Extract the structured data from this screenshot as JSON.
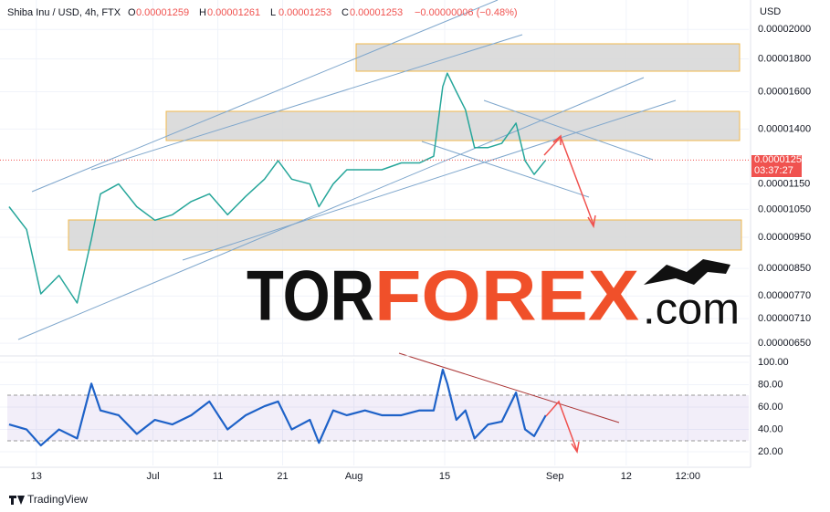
{
  "header": {
    "symbol": "Shiba Inu / USD, 4h, FTX",
    "ohlc": [
      {
        "key": "O",
        "value": "0.00001259"
      },
      {
        "key": "H",
        "value": "0.00001261"
      },
      {
        "key": "L",
        "value": "0.00001253"
      },
      {
        "key": "C",
        "value": "0.00001253"
      }
    ],
    "change": "−0.00000006 (−0.48%)",
    "currency": "USD",
    "countdown": "03:37:27"
  },
  "watermark": {
    "part1": "TOR",
    "part2": "FOREX",
    "part3": ".com"
  },
  "footer": "TradingView",
  "chart_data": [
    {
      "type": "line",
      "log_y": true,
      "grid": true,
      "xlim": [
        7.4,
        122.9
      ],
      "ylim": [
        6.213e-06,
        2.222e-05
      ],
      "yticks": [
        {
          "value": 2e-05,
          "label": "0.00002000"
        },
        {
          "value": 1.8e-05,
          "label": "0.00001800"
        },
        {
          "value": 1.6e-05,
          "label": "0.00001600"
        },
        {
          "value": 1.4e-05,
          "label": "0.00001400"
        },
        {
          "value": 1.15e-05,
          "label": "0.00001150"
        },
        {
          "value": 1.05e-05,
          "label": "0.00001050"
        },
        {
          "value": 9.5e-06,
          "label": "0.00000950"
        },
        {
          "value": 8.5e-06,
          "label": "0.00000850"
        },
        {
          "value": 7.7e-06,
          "label": "0.00000770"
        },
        {
          "value": 7.1e-06,
          "label": "0.00000710"
        },
        {
          "value": 6.5e-06,
          "label": "0.00000650"
        }
      ],
      "last_price": {
        "value": 1.253e-05,
        "label": "0.00001253"
      },
      "x": [
        8.8,
        11.5,
        13.7,
        16.5,
        19.3,
        21.5,
        22.9,
        25.7,
        28.5,
        31.3,
        34,
        36.9,
        39.7,
        42.5,
        45.3,
        48.2,
        50.3,
        52.4,
        55.2,
        56.6,
        58.8,
        60.9,
        63.7,
        66.3,
        69.3,
        72.1,
        74.3,
        75.7,
        76.4,
        77.8,
        79.2,
        80.6,
        82.7,
        84.8,
        87,
        88.4,
        89.8,
        91.6
      ],
      "series": [
        {
          "color": "#26a69a",
          "values": [
            1.06e-05,
            9.77e-06,
            7.76e-06,
            8.29e-06,
            7.51e-06,
            9.44e-06,
            1.11e-05,
            1.15e-05,
            1.06e-05,
            1.01e-05,
            1.03e-05,
            1.08e-05,
            1.11e-05,
            1.03e-05,
            1.1e-05,
            1.17e-05,
            1.25e-05,
            1.17e-05,
            1.15e-05,
            1.06e-05,
            1.15e-05,
            1.21e-05,
            1.21e-05,
            1.21e-05,
            1.24e-05,
            1.24e-05,
            1.27e-05,
            1.63e-05,
            1.71e-05,
            1.6e-05,
            1.5e-05,
            1.31e-05,
            1.31e-05,
            1.33e-05,
            1.43e-05,
            1.25e-05,
            1.19e-05,
            1.253e-05
          ]
        }
      ]
    },
    {
      "type": "line",
      "grid": true,
      "xlim": [
        7.4,
        122.9
      ],
      "ylim": [
        7.8,
        103.3
      ],
      "yticks": [
        {
          "value": 100,
          "label": "100.00"
        },
        {
          "value": 80,
          "label": "80.00"
        },
        {
          "value": 60,
          "label": "60.00"
        },
        {
          "value": 40,
          "label": "40.00"
        },
        {
          "value": 20,
          "label": "20.00"
        }
      ],
      "xticks": [
        {
          "value": 13,
          "label": "13"
        },
        {
          "value": 31,
          "label": "Jul"
        },
        {
          "value": 41,
          "label": "11"
        },
        {
          "value": 51,
          "label": "21"
        },
        {
          "value": 62,
          "label": "Aug"
        },
        {
          "value": 76,
          "label": "15"
        },
        {
          "value": 93,
          "label": "Sep"
        },
        {
          "value": 104,
          "label": "12"
        },
        {
          "value": 113.5,
          "label": "12:00"
        }
      ],
      "x": [
        8.8,
        11.5,
        13.7,
        16.5,
        19.3,
        21.5,
        22.9,
        25.7,
        28.5,
        31.3,
        34,
        36.9,
        39.7,
        42.5,
        45.3,
        48.2,
        50.3,
        52.4,
        55.2,
        56.6,
        58.8,
        60.9,
        63.7,
        66.3,
        69.3,
        72.1,
        74.3,
        75.7,
        76.4,
        77.8,
        79.2,
        80.6,
        82.7,
        84.8,
        87,
        88.4,
        89.8,
        91.6
      ],
      "series": [
        {
          "color": "#1e62c8",
          "values": [
            44.5,
            40,
            25.7,
            40,
            32,
            81,
            57,
            52.7,
            36,
            48.6,
            44.5,
            52.7,
            65,
            40,
            52.7,
            60.8,
            65,
            40,
            48.6,
            28,
            57,
            52.7,
            57,
            52.7,
            52.7,
            57,
            57,
            93.5,
            81,
            48.6,
            57,
            32,
            44.5,
            47,
            73,
            40,
            34,
            52.7
          ]
        }
      ]
    }
  ]
}
